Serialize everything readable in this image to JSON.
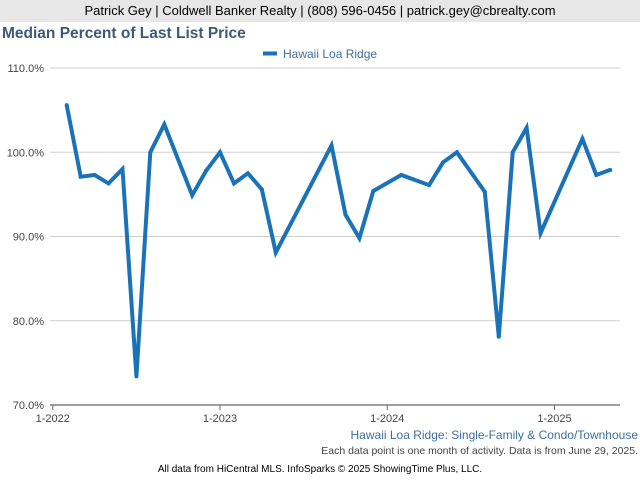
{
  "header": {
    "contact": "Patrick Gey | Coldwell Banker Realty | (808) 596-0456 | patrick.gey@cbrealty.com"
  },
  "chart_data": {
    "type": "line",
    "title": "Median Percent of Last List Price",
    "legend": "top-center",
    "grid": true,
    "ylim": [
      70,
      110
    ],
    "y_ticks": [
      "70.0%",
      "80.0%",
      "90.0%",
      "100.0%",
      "110.0%"
    ],
    "x_ticks": [
      "1-2022",
      "1-2023",
      "1-2024",
      "1-2025"
    ],
    "series": [
      {
        "name": "Hawaii Loa Ridge",
        "color": "#1a73b8",
        "points": [
          [
            "2022-02",
            105.6
          ],
          [
            "2022-03",
            97.1
          ],
          [
            "2022-04",
            97.3
          ],
          [
            "2022-05",
            96.3
          ],
          [
            "2022-06",
            98.0
          ],
          [
            "2022-07",
            73.4
          ],
          [
            "2022-08",
            100.0
          ],
          [
            "2022-09",
            103.3
          ],
          [
            "2022-11",
            94.9
          ],
          [
            "2022-12",
            97.8
          ],
          [
            "2023-01",
            100.0
          ],
          [
            "2023-02",
            96.3
          ],
          [
            "2023-03",
            97.5
          ],
          [
            "2023-04",
            95.6
          ],
          [
            "2023-05",
            88.1
          ],
          [
            "2023-09",
            100.8
          ],
          [
            "2023-10",
            92.6
          ],
          [
            "2023-11",
            89.8
          ],
          [
            "2023-12",
            95.4
          ],
          [
            "2024-02",
            97.3
          ],
          [
            "2024-04",
            96.1
          ],
          [
            "2024-05",
            98.8
          ],
          [
            "2024-06",
            100.0
          ],
          [
            "2024-08",
            95.3
          ],
          [
            "2024-09",
            78.1
          ],
          [
            "2024-10",
            100.0
          ],
          [
            "2024-11",
            102.9
          ],
          [
            "2024-12",
            90.4
          ],
          [
            "2025-03",
            101.6
          ],
          [
            "2025-04",
            97.3
          ],
          [
            "2025-05",
            97.9
          ]
        ]
      }
    ]
  },
  "footer": {
    "subtitle": "Hawaii Loa Ridge: Single-Family & Condo/Townhouse",
    "note": "Each data point is one month of activity. Data is from June 29, 2025.",
    "source": "All data from HiCentral MLS. InfoSparks © 2025 ShowingTime Plus, LLC."
  }
}
